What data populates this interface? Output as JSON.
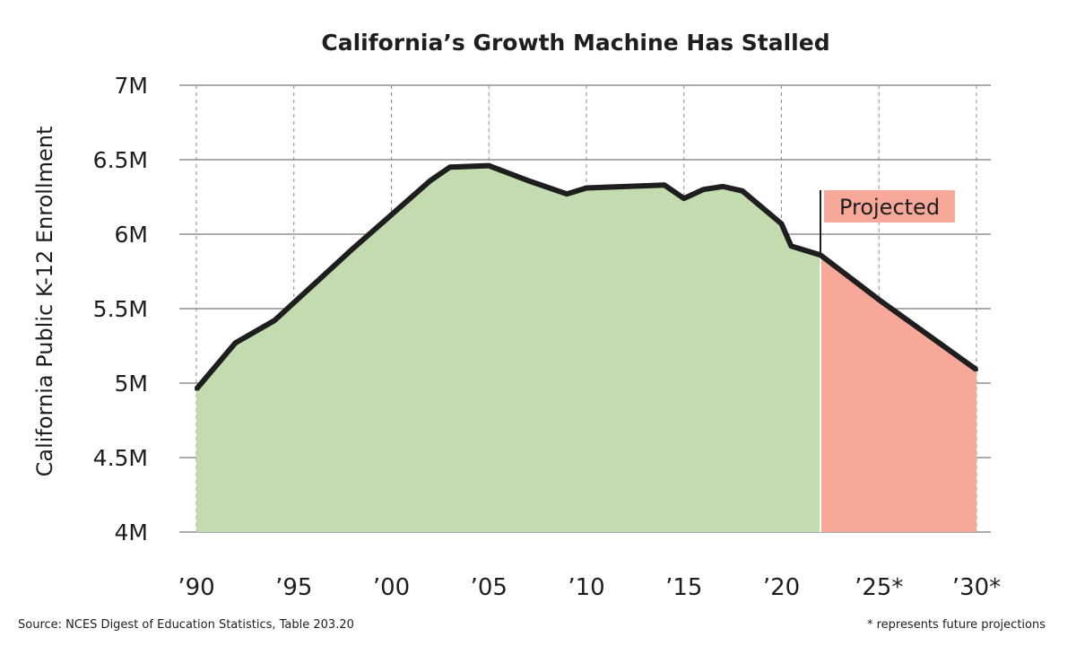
{
  "chart_data": {
    "type": "area",
    "title": "California’s Growth Machine Has Stalled",
    "ylabel": "California Public K-12 Enrollment",
    "xlabel": "",
    "xlim": [
      1990,
      2030
    ],
    "ylim": [
      4000000,
      7000000
    ],
    "x_ticks": [
      {
        "value": 1990,
        "label": "’90"
      },
      {
        "value": 1995,
        "label": "’95"
      },
      {
        "value": 2000,
        "label": "’00"
      },
      {
        "value": 2005,
        "label": "’05"
      },
      {
        "value": 2010,
        "label": "’10"
      },
      {
        "value": 2015,
        "label": "’15"
      },
      {
        "value": 2020,
        "label": "’20"
      },
      {
        "value": 2025,
        "label": "’25*"
      },
      {
        "value": 2030,
        "label": "’30*"
      }
    ],
    "y_ticks": [
      {
        "value": 4000000,
        "label": "4M"
      },
      {
        "value": 4500000,
        "label": "4.5M"
      },
      {
        "value": 5000000,
        "label": "5M"
      },
      {
        "value": 5500000,
        "label": "5.5M"
      },
      {
        "value": 6000000,
        "label": "6M"
      },
      {
        "value": 6500000,
        "label": "6.5M"
      },
      {
        "value": 7000000,
        "label": "7M"
      }
    ],
    "grid": true,
    "projection_start": 2022,
    "series": [
      {
        "segment": "actual",
        "color": "#c2dcaf",
        "x": [
          1990,
          1992,
          1994,
          1996,
          1998,
          2000,
          2002,
          2003,
          2005,
          2007,
          2009,
          2010,
          2012,
          2014,
          2015,
          2016,
          2017,
          2018,
          2020,
          2020.5,
          2022
        ],
        "values": [
          4960000,
          5270000,
          5420000,
          5660000,
          5900000,
          6130000,
          6360000,
          6450000,
          6460000,
          6360000,
          6270000,
          6310000,
          6320000,
          6330000,
          6240000,
          6300000,
          6320000,
          6290000,
          6070000,
          5920000,
          5860000
        ]
      },
      {
        "segment": "projected",
        "color": "#f7a898",
        "x": [
          2022,
          2025,
          2030
        ],
        "values": [
          5860000,
          5560000,
          5090000
        ]
      }
    ],
    "line_color": "#1e1e1e",
    "annotations": [
      {
        "text": "Projected",
        "x": 2022,
        "background": "#f7a898"
      }
    ]
  },
  "source_note": "Source: NCES Digest of Education Statistics, Table 203.20",
  "footnote": "* represents future projections"
}
